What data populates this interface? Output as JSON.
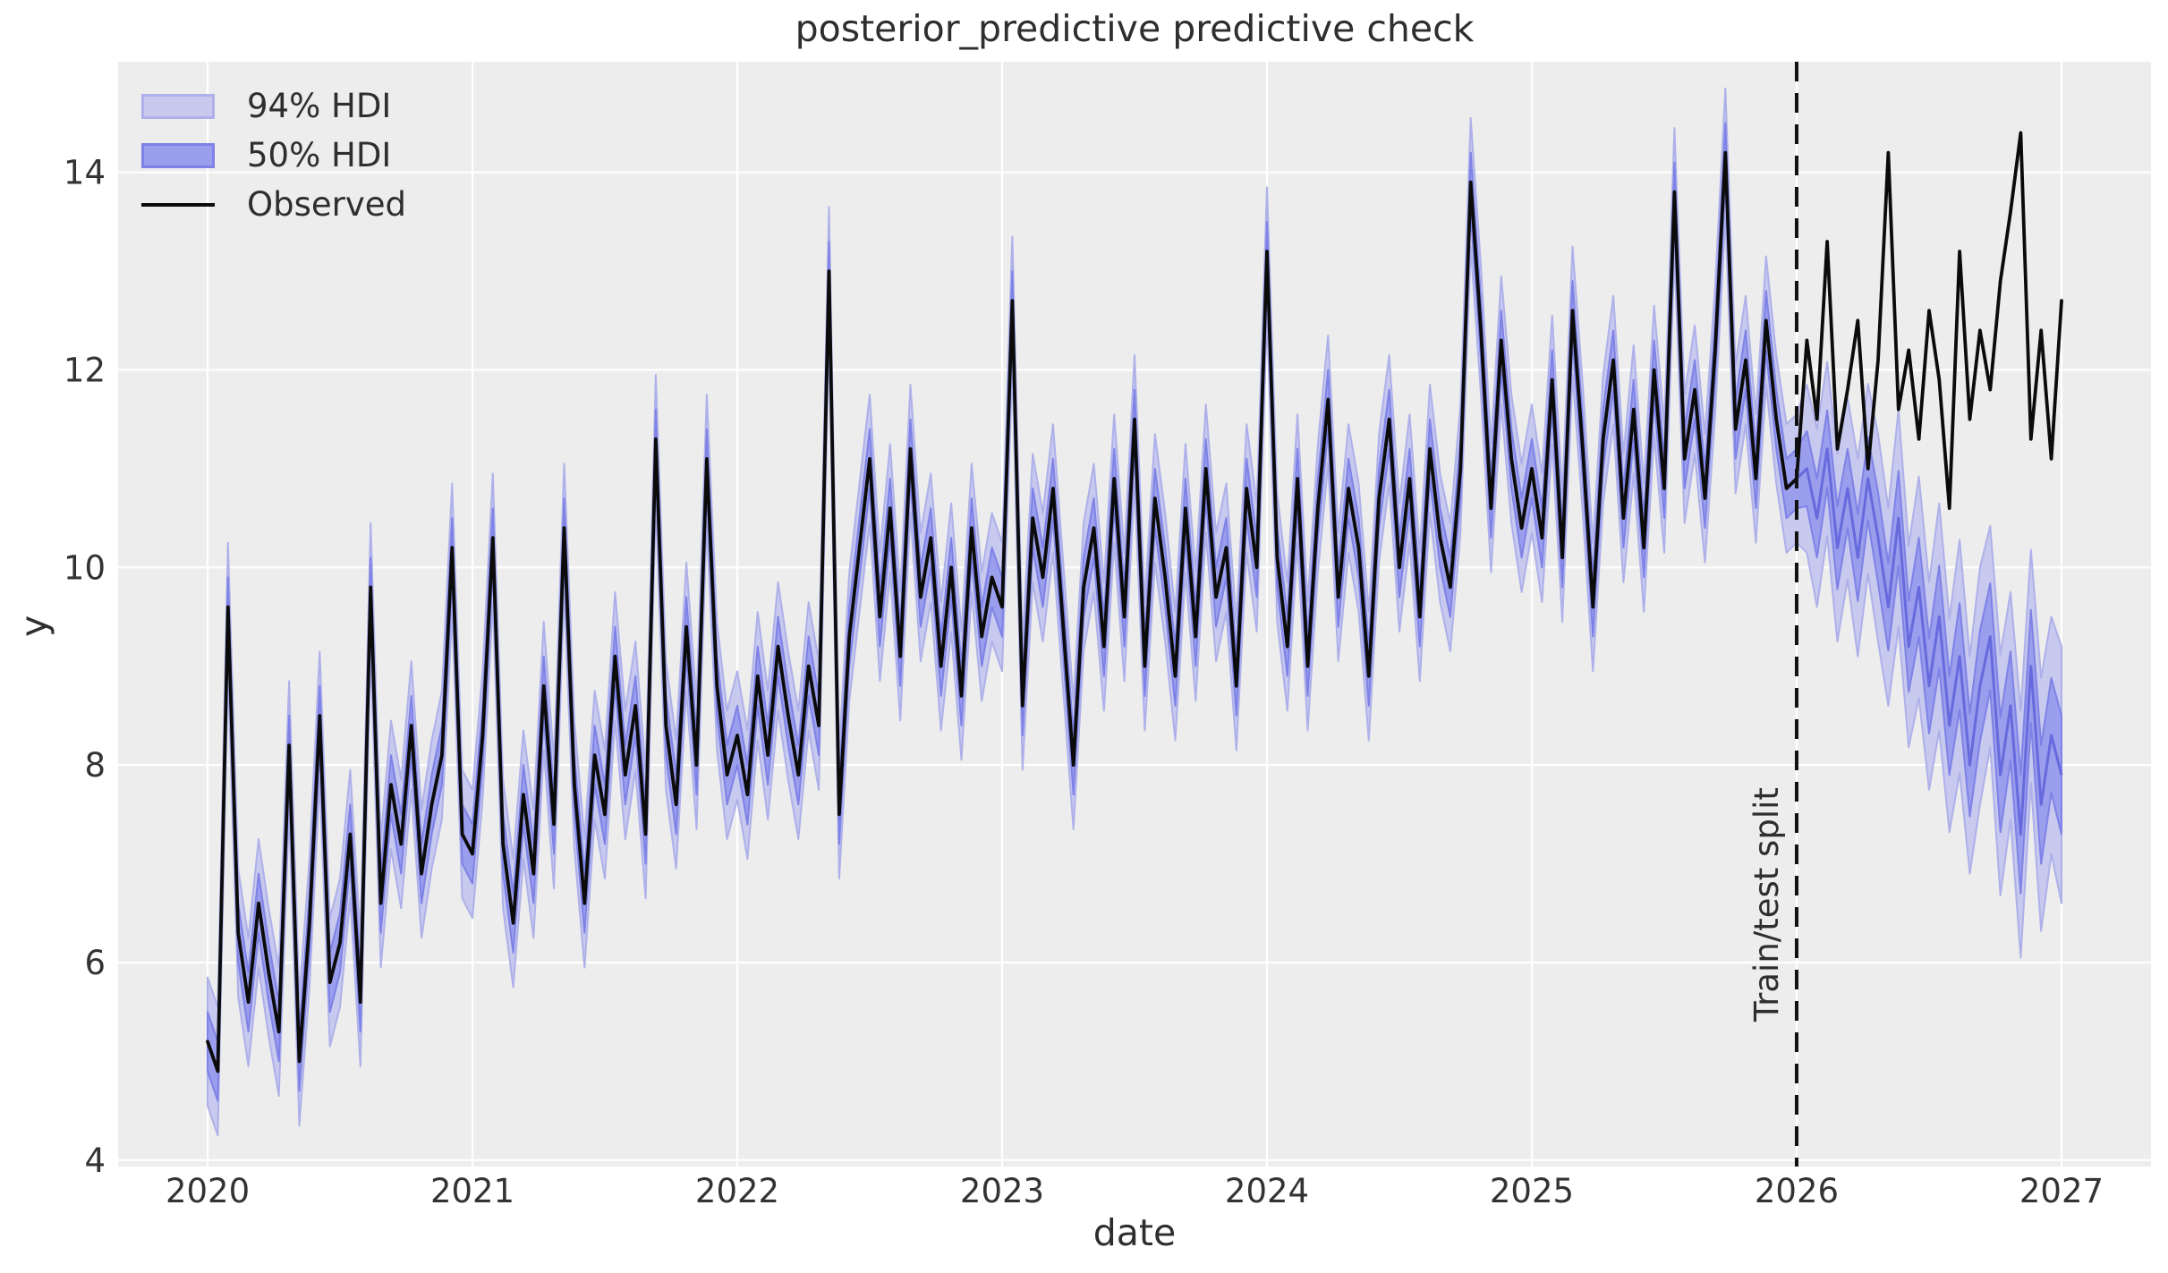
{
  "figure": {
    "title": "posterior_predictive predictive check",
    "xlabel": "date",
    "ylabel": "y"
  },
  "legend": {
    "items": [
      {
        "label": "94% HDI",
        "swatch": "patch-light"
      },
      {
        "label": "50% HDI",
        "swatch": "patch-dark"
      },
      {
        "label": "Observed",
        "swatch": "line"
      }
    ]
  },
  "annotations": {
    "split_label": "Train/test split",
    "split_x": 2026.0
  },
  "chart_data": {
    "type": "line",
    "title": "posterior_predictive predictive check",
    "xlabel": "date",
    "ylabel": "y",
    "xlim": [
      2019.662,
      2027.338
    ],
    "ylim": [
      3.935,
      15.12
    ],
    "x_ticks": [
      2020,
      2021,
      2022,
      2023,
      2024,
      2025,
      2026,
      2027
    ],
    "y_ticks": [
      4,
      6,
      8,
      10,
      12,
      14
    ],
    "grid": true,
    "legend_position": "upper left",
    "x_start": 2020.0,
    "x_step": 0.0384615385,
    "n_points": 183,
    "train_end_index": 156,
    "split_x": 2026.0,
    "series": {
      "observed": [
        5.2,
        4.9,
        9.6,
        6.3,
        5.6,
        6.6,
        5.9,
        5.3,
        8.2,
        5.0,
        6.4,
        8.5,
        5.8,
        6.2,
        7.3,
        5.6,
        9.8,
        6.6,
        7.8,
        7.2,
        8.4,
        6.9,
        7.6,
        8.1,
        10.2,
        7.3,
        7.1,
        8.3,
        10.3,
        7.2,
        6.4,
        7.7,
        6.9,
        8.8,
        7.4,
        10.4,
        7.8,
        6.6,
        8.1,
        7.5,
        9.1,
        7.9,
        8.6,
        7.3,
        11.3,
        8.4,
        7.6,
        9.4,
        8.0,
        11.1,
        8.8,
        7.9,
        8.3,
        7.7,
        8.9,
        8.1,
        9.2,
        8.5,
        7.9,
        9.0,
        8.4,
        13.0,
        7.5,
        9.3,
        10.2,
        11.1,
        9.5,
        10.6,
        9.1,
        11.2,
        9.7,
        10.3,
        9.0,
        10.0,
        8.7,
        10.4,
        9.3,
        9.9,
        9.6,
        12.7,
        8.6,
        10.5,
        9.9,
        10.8,
        9.4,
        8.0,
        9.8,
        10.4,
        9.2,
        10.9,
        9.5,
        11.5,
        9.0,
        10.7,
        9.9,
        8.9,
        10.6,
        9.3,
        11.0,
        9.7,
        10.2,
        8.8,
        10.8,
        10.0,
        13.2,
        10.1,
        9.2,
        10.9,
        9.0,
        10.6,
        11.7,
        9.7,
        10.8,
        10.2,
        8.9,
        10.7,
        11.5,
        10.0,
        10.9,
        9.5,
        11.2,
        10.3,
        9.8,
        11.0,
        13.9,
        12.4,
        10.6,
        12.3,
        11.1,
        10.4,
        11.0,
        10.3,
        11.9,
        10.1,
        12.6,
        11.2,
        9.6,
        11.3,
        12.1,
        10.5,
        11.6,
        10.2,
        12.0,
        10.8,
        13.8,
        11.1,
        11.8,
        10.7,
        12.2,
        14.2,
        11.4,
        12.1,
        10.9,
        12.5,
        11.5,
        10.8,
        10.9,
        12.3,
        11.5,
        13.3,
        11.2,
        11.8,
        12.5,
        11.0,
        12.1,
        14.2,
        11.6,
        12.2,
        11.3,
        12.6,
        11.9,
        10.6,
        13.2,
        11.5,
        12.4,
        11.8,
        12.9,
        13.6,
        14.4,
        11.3,
        12.4,
        11.1,
        12.7
      ],
      "predicted_median_train_equals_observed": true,
      "predicted_median_test": [
        11.0,
        10.5,
        11.2,
        10.2,
        10.8,
        10.1,
        10.9,
        10.3,
        9.6,
        10.5,
        9.2,
        9.8,
        8.8,
        9.5,
        8.4,
        9.1,
        8.0,
        8.8,
        9.3,
        7.9,
        8.6,
        7.3,
        9.0,
        7.6,
        8.3,
        7.9
      ]
    },
    "hdi": {
      "half_width_50_train": 0.3,
      "half_width_94_train": 0.65,
      "half_width_50_test": [
        0.38,
        0.4,
        0.39,
        0.42,
        0.4,
        0.44,
        0.42,
        0.46,
        0.44,
        0.48,
        0.46,
        0.5,
        0.48,
        0.52,
        0.5,
        0.54,
        0.52,
        0.56,
        0.54,
        0.58,
        0.55,
        0.6,
        0.57,
        0.6,
        0.58,
        0.6
      ],
      "half_width_94_test": [
        0.85,
        0.9,
        0.88,
        0.95,
        0.92,
        1.0,
        0.96,
        1.05,
        1.0,
        1.1,
        1.02,
        1.12,
        1.05,
        1.15,
        1.08,
        1.18,
        1.1,
        1.2,
        1.12,
        1.22,
        1.15,
        1.25,
        1.18,
        1.28,
        1.2,
        1.3
      ]
    },
    "colors": {
      "axes_bg": "#ededee",
      "figure_bg": "#ffffff",
      "grid": "#ffffff",
      "band94_fill": "#c7c9ee",
      "band94_edge": "#aeb1e9",
      "band50_fill": "#9b9eec",
      "band50_edge": "#7e82e6",
      "median_line": "#666add",
      "observed_line": "#0b0b0b",
      "split_line": "#111111",
      "tick_text": "#333333"
    }
  }
}
